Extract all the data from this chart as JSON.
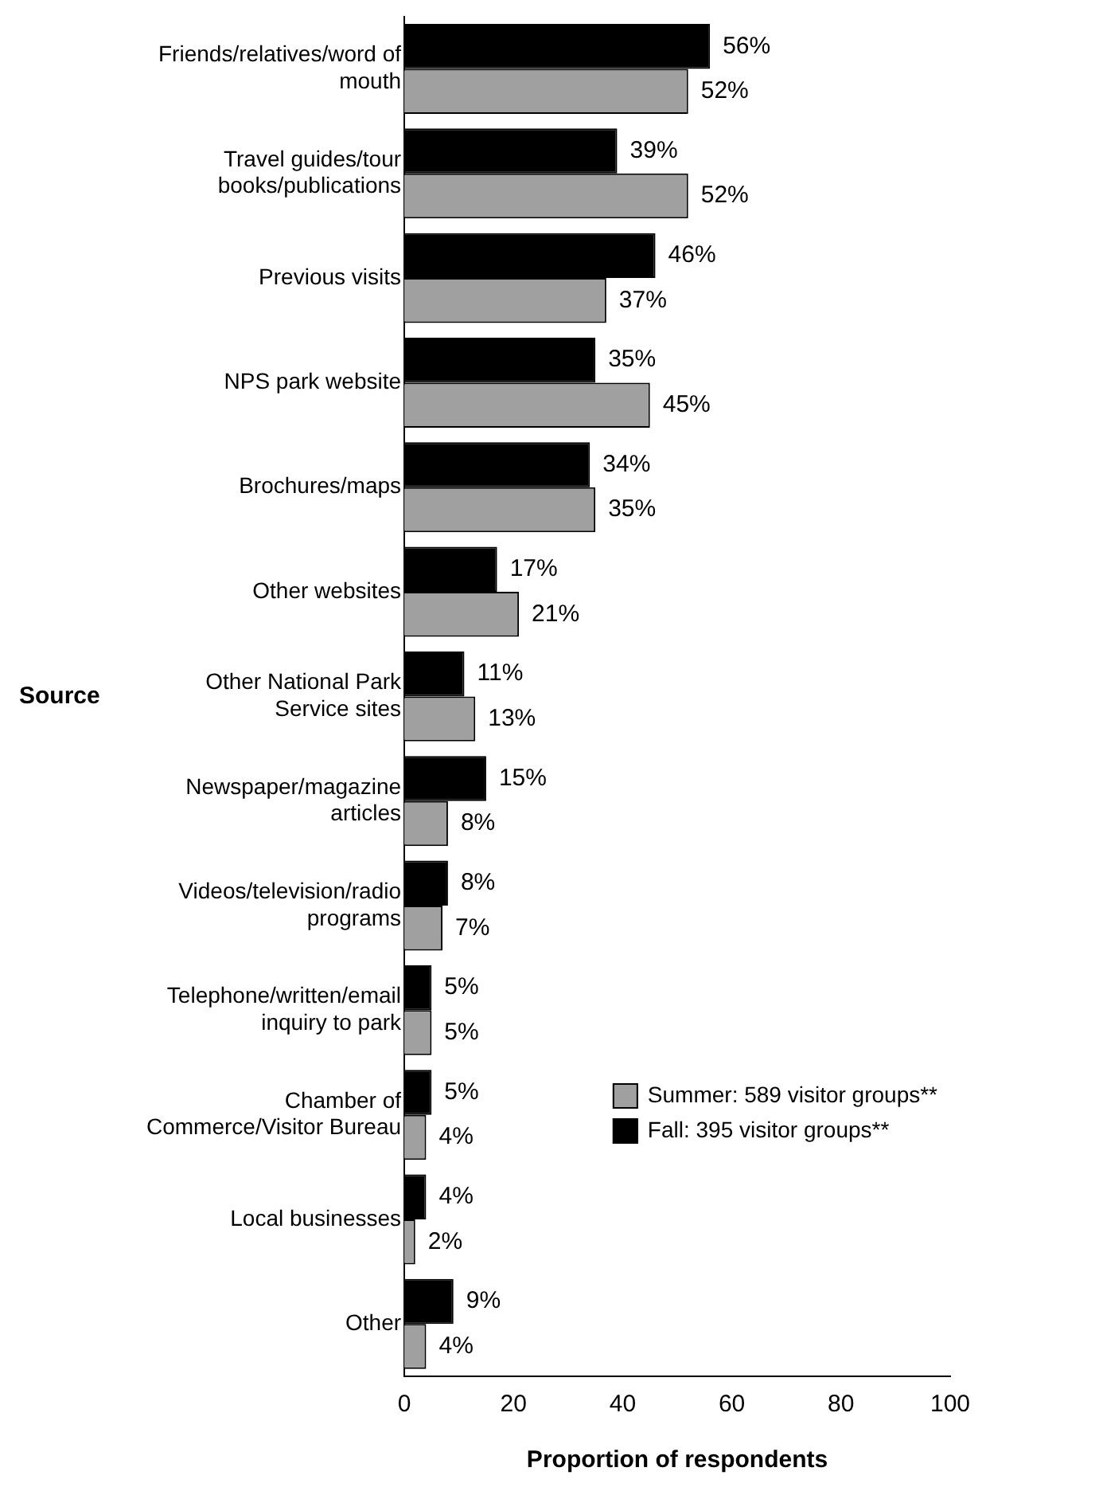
{
  "chart_data": {
    "type": "bar",
    "orientation": "horizontal",
    "ylabel": "Source",
    "xlabel": "Proportion of respondents",
    "categories": [
      "Friends/relatives/word of mouth",
      "Travel guides/tour books/publications",
      "Previous visits",
      "NPS park website",
      "Brochures/maps",
      "Other websites",
      "Other National Park Service sites",
      "Newspaper/magazine articles",
      "Videos/television/radio programs",
      "Telephone/written/email inquiry to park",
      "Chamber of Commerce/Visitor Bureau",
      "Local businesses",
      "Other"
    ],
    "series": [
      {
        "name": "Fall: 395 visitor groups**",
        "color": "#000000",
        "values": [
          56,
          39,
          46,
          35,
          34,
          17,
          11,
          15,
          8,
          5,
          5,
          4,
          9
        ],
        "value_labels": [
          "56%",
          "39%",
          "46%",
          "35%",
          "34%",
          "17%",
          "11%",
          "15%",
          "8%",
          "5%",
          "5%",
          "4%",
          "9%"
        ]
      },
      {
        "name": "Summer: 589 visitor groups**",
        "color": "#a0a0a0",
        "values": [
          52,
          52,
          37,
          45,
          35,
          21,
          13,
          8,
          7,
          5,
          4,
          2,
          4
        ],
        "value_labels": [
          "52%",
          "52%",
          "37%",
          "45%",
          "35%",
          "21%",
          "13%",
          "8%",
          "7%",
          "5%",
          "4%",
          "2%",
          "4%"
        ]
      }
    ],
    "xlim": [
      0,
      100
    ],
    "xticks": [
      0,
      20,
      40,
      60,
      80,
      100
    ],
    "grid": false,
    "legend": "bottom right"
  }
}
